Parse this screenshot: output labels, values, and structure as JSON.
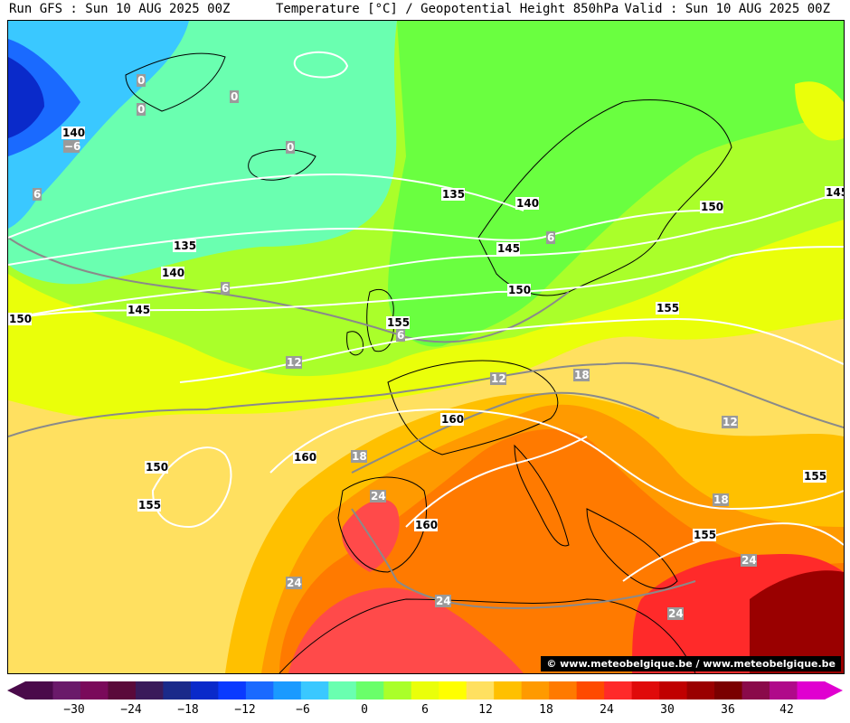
{
  "header": {
    "left": "Run GFS : Sun 10 AUG 2025 00Z",
    "center": "Temperature [°C] / Geopotential Height 850hPa",
    "right": "Valid : Sun 10 AUG 2025 00Z"
  },
  "credit": "© www.meteobelgique.be / www.meteobelgique.be",
  "colorbar": {
    "colors": [
      "#4a0a4a",
      "#6a1a6a",
      "#7a0a5a",
      "#5a0a3a",
      "#3a1a5a",
      "#1a2a8a",
      "#0a2aca",
      "#0a3aff",
      "#1a6aff",
      "#1a9aff",
      "#3ac8ff",
      "#6affb0",
      "#6aff6a",
      "#aaff2a",
      "#eaff0a",
      "#ffff00",
      "#ffe060",
      "#ffc000",
      "#ff9a00",
      "#ff7a00",
      "#ff4a00",
      "#ff2a2a",
      "#e00a0a",
      "#c00000",
      "#9a0000",
      "#7a0000",
      "#8a0a4a",
      "#b00a8a",
      "#e000d0"
    ],
    "ticks": [
      "−30",
      "−24",
      "−18",
      "−12",
      "−6",
      "0",
      "6",
      "12",
      "18",
      "24",
      "30",
      "36",
      "42"
    ]
  },
  "map_labels": {
    "height": [
      "140",
      "135",
      "140",
      "145",
      "150",
      "135",
      "140",
      "145",
      "150",
      "155",
      "150",
      "155",
      "145",
      "150",
      "155",
      "160",
      "160",
      "160",
      "155",
      "155"
    ],
    "temperature": [
      "0",
      "0",
      "0",
      "0",
      "−6",
      "6",
      "6",
      "6",
      "6",
      "12",
      "12",
      "12",
      "18",
      "18",
      "18",
      "24",
      "24",
      "24",
      "24",
      "24"
    ]
  }
}
